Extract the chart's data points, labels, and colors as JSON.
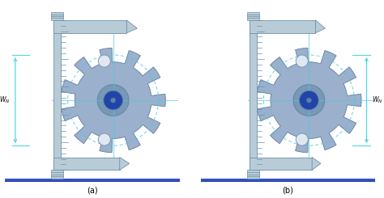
{
  "fig_width": 4.74,
  "fig_height": 2.45,
  "dpi": 100,
  "bg_outer": "#ffffff",
  "panel_bg_top": "#1a3ab5",
  "panel_bg_bot": "#3060d0",
  "gear_color": "#9ab0cc",
  "gear_edge": "#6080a0",
  "gear_hub_color": "#7898b8",
  "gear_hole_color": "#2244aa",
  "caliper_color": "#b8ccd8",
  "caliper_edge": "#7090a8",
  "pin_color": "#dde8f0",
  "pin_edge": "#8098b0",
  "dashed_color": "#50c8e0",
  "cross_color": "#50c8e0",
  "arrow_color": "#50d8e8",
  "wn_color": "#000000",
  "label_color": "#000000",
  "label_a": "(a)",
  "label_b": "(b)",
  "wn_label": "$W_N$"
}
